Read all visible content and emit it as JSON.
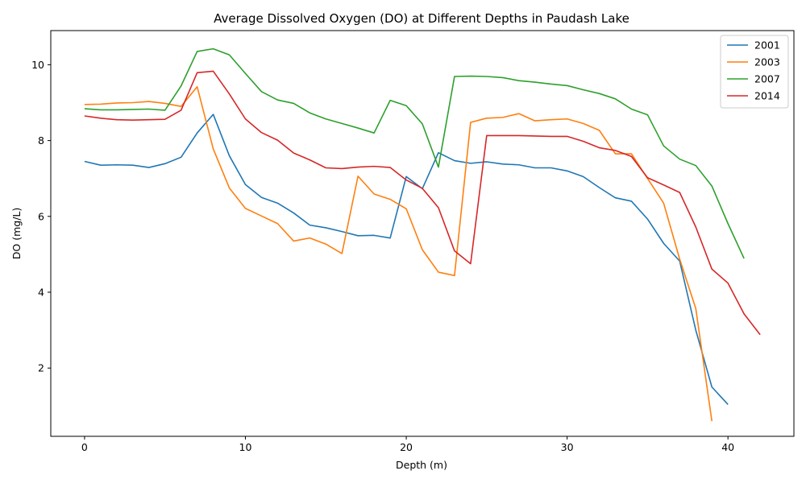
{
  "chart_data": {
    "type": "line",
    "title": "Average Dissolved Oxygen (DO) at Different Depths in Paudash Lake",
    "xlabel": "Depth (m)",
    "ylabel": "DO (mg/L)",
    "xlim": [
      -2.1,
      44.1
    ],
    "ylim": [
      0.2,
      10.9
    ],
    "xticks": [
      0,
      10,
      20,
      30,
      40
    ],
    "yticks": [
      2,
      4,
      6,
      8,
      10
    ],
    "grid": false,
    "legend_position": "top-right",
    "series": [
      {
        "name": "2001",
        "color": "#1f77b4",
        "x": [
          0,
          1,
          2,
          3,
          4,
          5,
          6,
          7,
          8,
          9,
          10,
          11,
          12,
          13,
          14,
          15,
          16,
          17,
          18,
          19,
          20,
          21,
          22,
          23,
          24,
          25,
          26,
          27,
          28,
          29,
          30,
          31,
          32,
          33,
          34,
          35,
          36,
          37,
          38,
          39,
          40
        ],
        "y": [
          7.45,
          7.35,
          7.36,
          7.35,
          7.29,
          7.39,
          7.56,
          8.2,
          8.69,
          7.6,
          6.84,
          6.5,
          6.35,
          6.09,
          5.77,
          5.7,
          5.6,
          5.49,
          5.5,
          5.43,
          7.05,
          6.73,
          7.68,
          7.47,
          7.4,
          7.44,
          7.38,
          7.36,
          7.28,
          7.28,
          7.2,
          7.05,
          6.76,
          6.49,
          6.4,
          5.93,
          5.29,
          4.82,
          3.0,
          1.5,
          1.04
        ]
      },
      {
        "name": "2003",
        "color": "#ff7f0e",
        "x": [
          0,
          1,
          2,
          3,
          4,
          5,
          6,
          7,
          8,
          9,
          10,
          11,
          12,
          13,
          14,
          15,
          16,
          17,
          18,
          19,
          20,
          21,
          22,
          23,
          24,
          25,
          26,
          27,
          28,
          29,
          30,
          31,
          32,
          33,
          34,
          35,
          36,
          37,
          38,
          39
        ],
        "y": [
          8.95,
          8.96,
          8.99,
          9.0,
          9.03,
          8.98,
          8.9,
          9.42,
          7.78,
          6.75,
          6.21,
          6.01,
          5.81,
          5.35,
          5.43,
          5.27,
          5.02,
          7.06,
          6.59,
          6.45,
          6.2,
          5.12,
          4.53,
          4.44,
          8.48,
          8.59,
          8.61,
          8.71,
          8.52,
          8.55,
          8.57,
          8.45,
          8.27,
          7.65,
          7.65,
          7.0,
          6.35,
          4.87,
          3.57,
          0.6
        ]
      },
      {
        "name": "2007",
        "color": "#2ca02c",
        "x": [
          0,
          1,
          2,
          3,
          4,
          5,
          6,
          7,
          8,
          9,
          10,
          11,
          12,
          13,
          14,
          15,
          16,
          17,
          18,
          19,
          20,
          21,
          22,
          23,
          24,
          25,
          26,
          27,
          28,
          29,
          30,
          31,
          32,
          33,
          34,
          35,
          36,
          37,
          38,
          39,
          40,
          41
        ],
        "y": [
          8.84,
          8.81,
          8.81,
          8.82,
          8.83,
          8.8,
          9.44,
          10.35,
          10.42,
          10.26,
          9.77,
          9.29,
          9.07,
          8.98,
          8.73,
          8.57,
          8.45,
          8.33,
          8.2,
          9.06,
          8.92,
          8.44,
          7.3,
          9.69,
          9.7,
          9.69,
          9.66,
          9.58,
          9.54,
          9.49,
          9.45,
          9.34,
          9.24,
          9.1,
          8.83,
          8.68,
          7.86,
          7.51,
          7.34,
          6.8,
          5.81,
          4.89
        ]
      },
      {
        "name": "2014",
        "color": "#d62728",
        "x": [
          0,
          1,
          2,
          3,
          4,
          5,
          6,
          7,
          8,
          9,
          10,
          11,
          12,
          13,
          14,
          15,
          16,
          17,
          18,
          19,
          20,
          21,
          22,
          23,
          24,
          25,
          26,
          27,
          28,
          29,
          30,
          31,
          32,
          33,
          34,
          35,
          36,
          37,
          38,
          39,
          40,
          41,
          42
        ],
        "y": [
          8.65,
          8.59,
          8.55,
          8.54,
          8.55,
          8.56,
          8.8,
          9.79,
          9.83,
          9.23,
          8.57,
          8.21,
          8.01,
          7.67,
          7.49,
          7.28,
          7.26,
          7.3,
          7.32,
          7.29,
          6.96,
          6.74,
          6.23,
          5.09,
          4.75,
          8.13,
          8.13,
          8.13,
          8.12,
          8.11,
          8.11,
          7.98,
          7.81,
          7.74,
          7.58,
          7.02,
          6.83,
          6.63,
          5.72,
          4.61,
          4.24,
          3.43,
          2.88
        ]
      }
    ]
  }
}
